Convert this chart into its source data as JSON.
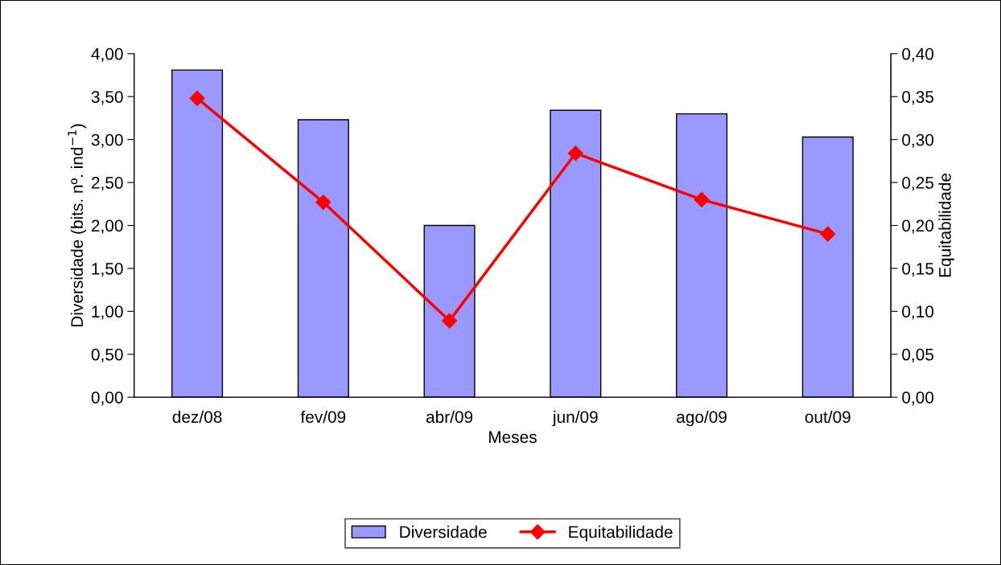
{
  "chart_data": {
    "type": "bar",
    "xlabel": "Meses",
    "ylabel": "Diversidade (bits. nº. ind$^{−1}$)",
    "y2label": "Equitabilidade",
    "categories": [
      "dez/08",
      "fev/09",
      "abr/09",
      "jun/09",
      "ago/09",
      "out/09"
    ],
    "series": [
      {
        "name": "Diversidade",
        "color": "#9999ff",
        "values": [
          3.81,
          3.23,
          2.0,
          3.34,
          3.3,
          3.03
        ]
      },
      {
        "name": "Equitabilidade",
        "type": "line",
        "axis": "y2",
        "color": "#ff0000",
        "marker": "diamond",
        "values": [
          0.348,
          0.227,
          0.089,
          0.284,
          0.23,
          0.19
        ]
      }
    ],
    "ylim": [
      0,
      4
    ],
    "yticks": [
      {
        "value": 0,
        "label": "0,00"
      },
      {
        "value": 0.5,
        "label": "0,50"
      },
      {
        "value": 1,
        "label": "1,00"
      },
      {
        "value": 1.5,
        "label": "1,50"
      },
      {
        "value": 2,
        "label": "2,00"
      },
      {
        "value": 2.5,
        "label": "2,50"
      },
      {
        "value": 3,
        "label": "3,00"
      },
      {
        "value": 3.5,
        "label": "3,50"
      },
      {
        "value": 4,
        "label": "4,00"
      }
    ],
    "y2lim": [
      0,
      0.4
    ],
    "y2ticks": [
      {
        "value": 0,
        "label": "0,00"
      },
      {
        "value": 0.05,
        "label": "0,05"
      },
      {
        "value": 0.1,
        "label": "0,10"
      },
      {
        "value": 0.15,
        "label": "0,15"
      },
      {
        "value": 0.2,
        "label": "0,20"
      },
      {
        "value": 0.25,
        "label": "0,25"
      },
      {
        "value": 0.3,
        "label": "0,30"
      },
      {
        "value": 0.35,
        "label": "0,35"
      },
      {
        "value": 0.4,
        "label": "0,40"
      }
    ],
    "grid": false,
    "legend": "bottom"
  }
}
